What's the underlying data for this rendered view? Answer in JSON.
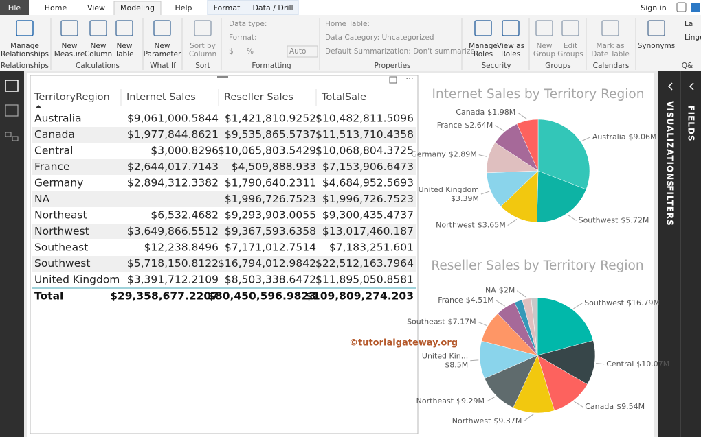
{
  "tabs": [
    "File",
    "Home",
    "View",
    "Modeling",
    "Help",
    "Format",
    "Data / Drill"
  ],
  "sign_in": "Sign in",
  "ribbon_groups": [
    {
      "label": "Relationships",
      "items": [
        [
          "Manage",
          "Relationships"
        ]
      ]
    },
    {
      "label": "Calculations",
      "items": [
        [
          "New",
          "Measure"
        ],
        [
          "New",
          "Column"
        ],
        [
          "New",
          "Table"
        ]
      ]
    },
    {
      "label": "What If",
      "items": [
        [
          "New",
          "Parameter"
        ]
      ]
    },
    {
      "label": "Sort",
      "items": [
        [
          "Sort by",
          "Column"
        ]
      ]
    },
    {
      "label": "Formatting",
      "items": [
        [
          "Data type:"
        ],
        [
          "Format:"
        ],
        [
          "$",
          "%",
          "Auto"
        ]
      ]
    },
    {
      "label": "Properties",
      "items": [
        [
          "Home Table:"
        ],
        [
          "Data Category: Uncategorized"
        ],
        [
          "Default Summarization: Don't summarize"
        ]
      ]
    },
    {
      "label": "Security",
      "items": [
        [
          "Manage",
          "Roles"
        ],
        [
          "View as",
          "Roles"
        ]
      ]
    },
    {
      "label": "Groups",
      "items": [
        [
          "New",
          "Group"
        ],
        [
          "Edit",
          "Groups"
        ]
      ]
    },
    {
      "label": "Calendars",
      "items": [
        [
          "Mark as",
          "Date Table"
        ]
      ]
    },
    {
      "label": "Q&",
      "items": [
        [
          "Synonyms"
        ],
        [
          "La"
        ],
        [
          "Lingu"
        ]
      ]
    }
  ],
  "side_panes": [
    "VISUALIZATIONS",
    "FILTERS",
    "FIELDS"
  ],
  "table": {
    "columns": [
      "TerritoryRegion",
      "Internet Sales",
      "Reseller Sales",
      "TotalSale"
    ],
    "rows": [
      [
        "Australia",
        "$9,061,000.5844",
        "$1,421,810.9252",
        "$10,482,811.5096"
      ],
      [
        "Canada",
        "$1,977,844.8621",
        "$9,535,865.5737",
        "$11,513,710.4358"
      ],
      [
        "Central",
        "$3,000.8296",
        "$10,065,803.5429",
        "$10,068,804.3725"
      ],
      [
        "France",
        "$2,644,017.7143",
        "$4,509,888.933",
        "$7,153,906.6473"
      ],
      [
        "Germany",
        "$2,894,312.3382",
        "$1,790,640.2311",
        "$4,684,952.5693"
      ],
      [
        "NA",
        null,
        "$1,996,726.7523",
        "$1,996,726.7523"
      ],
      [
        "Northeast",
        "$6,532.4682",
        "$9,293,903.0055",
        "$9,300,435.4737"
      ],
      [
        "Northwest",
        "$3,649,866.5512",
        "$9,367,593.6358",
        "$13,017,460.187"
      ],
      [
        "Southeast",
        "$12,238.8496",
        "$7,171,012.7514",
        "$7,183,251.601"
      ],
      [
        "Southwest",
        "$5,718,150.8122",
        "$16,794,012.9842",
        "$22,512,163.7964"
      ],
      [
        "United Kingdom",
        "$3,391,712.2109",
        "$8,503,338.6472",
        "$11,895,050.8581"
      ]
    ],
    "total": [
      "Total",
      "$29,358,677.2207",
      "$80,450,596.9823",
      "$109,809,274.203"
    ]
  },
  "chart_data": [
    {
      "type": "pie",
      "title": "Internet Sales by Territory Region",
      "categories": [
        "Australia",
        "Southwest",
        "Northwest",
        "United Kingdom",
        "Germany",
        "France",
        "Canada"
      ],
      "values": [
        9.06,
        5.72,
        3.65,
        3.39,
        2.89,
        2.64,
        1.98
      ],
      "value_labels": [
        "$9.06M",
        "$5.72M",
        "$3.65M",
        "$3.39M",
        "$2.89M",
        "$2.64M",
        "$1.98M"
      ],
      "colors": [
        "#33c6b8",
        "#0db3a4",
        "#f2c80f",
        "#8ad4eb",
        "#dfbfbf",
        "#a66999",
        "#fd625e"
      ]
    },
    {
      "type": "pie",
      "title": "Reseller Sales by Territory Region",
      "categories": [
        "Southwest",
        "Central",
        "Canada",
        "Northwest",
        "Northeast",
        "United Kin...",
        "Southeast",
        "France",
        null,
        "NA",
        null
      ],
      "values": [
        16.79,
        10.07,
        9.54,
        9.37,
        9.29,
        8.5,
        7.17,
        4.51,
        1.79,
        2,
        1.42
      ],
      "value_labels": [
        "$16.79M",
        "$10.07M",
        "$9.54M",
        "$9.37M",
        "$9.29M",
        "$8.5M",
        "$7.17M",
        "$4.51M",
        null,
        "$2M",
        null
      ],
      "colors": [
        "#01b8aa",
        "#374649",
        "#fd625e",
        "#f2c80f",
        "#5f6b6d",
        "#8ad4eb",
        "#fe9666",
        "#a66999",
        "#3599b8",
        "#dfbfbf",
        "#c8c8c8"
      ]
    }
  ],
  "watermark": "©tutorialgateway.org"
}
